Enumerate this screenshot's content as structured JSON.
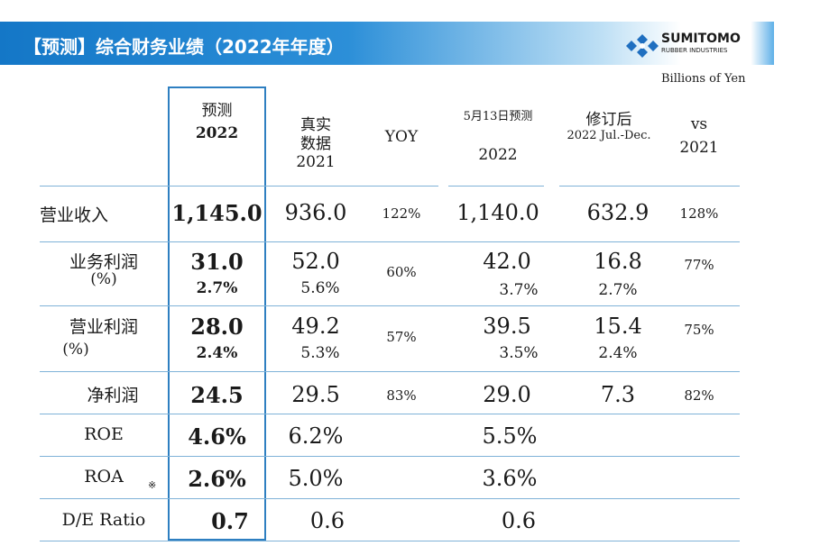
{
  "header": {
    "title": "【预测】综合财务业绩（2022年年度）",
    "logo_name": "SUMITOMO",
    "logo_sub": "RUBBER INDUSTRIES",
    "units": "Billions of Yen"
  },
  "colors": {
    "banner": "#1477c7",
    "highlight_border": "#2e7fc1",
    "divider": "#7fb2d8"
  },
  "columns": {
    "forecast": {
      "line1": "预测",
      "line2": "2022"
    },
    "actual": {
      "line1": "真实",
      "line2": "数据",
      "line3": "2021"
    },
    "yoy": "YOY",
    "may13": {
      "line1": "5月13日预测",
      "line2": "2022"
    },
    "revised": {
      "line1": "修订后",
      "line2": "2022 Jul.-Dec."
    },
    "vs": {
      "line1": "vs",
      "line2": "2021"
    }
  },
  "rows": {
    "revenue": {
      "label": "营业收入",
      "forecast": "1,145.0",
      "actual": "936.0",
      "yoy": "122%",
      "may13": "1,140.0",
      "revised": "632.9",
      "vs": "128%"
    },
    "business_profit": {
      "label": "业务利润",
      "label2": "(%)",
      "forecast": "31.0",
      "forecast_pct": "2.7%",
      "actual": "52.0",
      "actual_pct": "5.6%",
      "yoy": "60%",
      "may13": "42.0",
      "may13_pct": "3.7%",
      "revised": "16.8",
      "revised_pct": "2.7%",
      "vs": "77%"
    },
    "operating_profit": {
      "label": "营业利润",
      "label2": "(%)",
      "forecast": "28.0",
      "forecast_pct": "2.4%",
      "actual": "49.2",
      "actual_pct": "5.3%",
      "yoy": "57%",
      "may13": "39.5",
      "may13_pct": "3.5%",
      "revised": "15.4",
      "revised_pct": "2.4%",
      "vs": "75%"
    },
    "net_profit": {
      "label": "净利润",
      "forecast": "24.5",
      "actual": "29.5",
      "yoy": "83%",
      "may13": "29.0",
      "revised": "7.3",
      "vs": "82%"
    },
    "roe": {
      "label": "ROE",
      "forecast": "4.6%",
      "actual": "6.2%",
      "may13": "5.5%"
    },
    "roa": {
      "label": "ROA",
      "note": "※",
      "forecast": "2.6%",
      "actual": "5.0%",
      "may13": "3.6%"
    },
    "de_ratio": {
      "label": "D/E Ratio",
      "forecast": "0.7",
      "actual": "0.6",
      "may13": "0.6"
    }
  }
}
